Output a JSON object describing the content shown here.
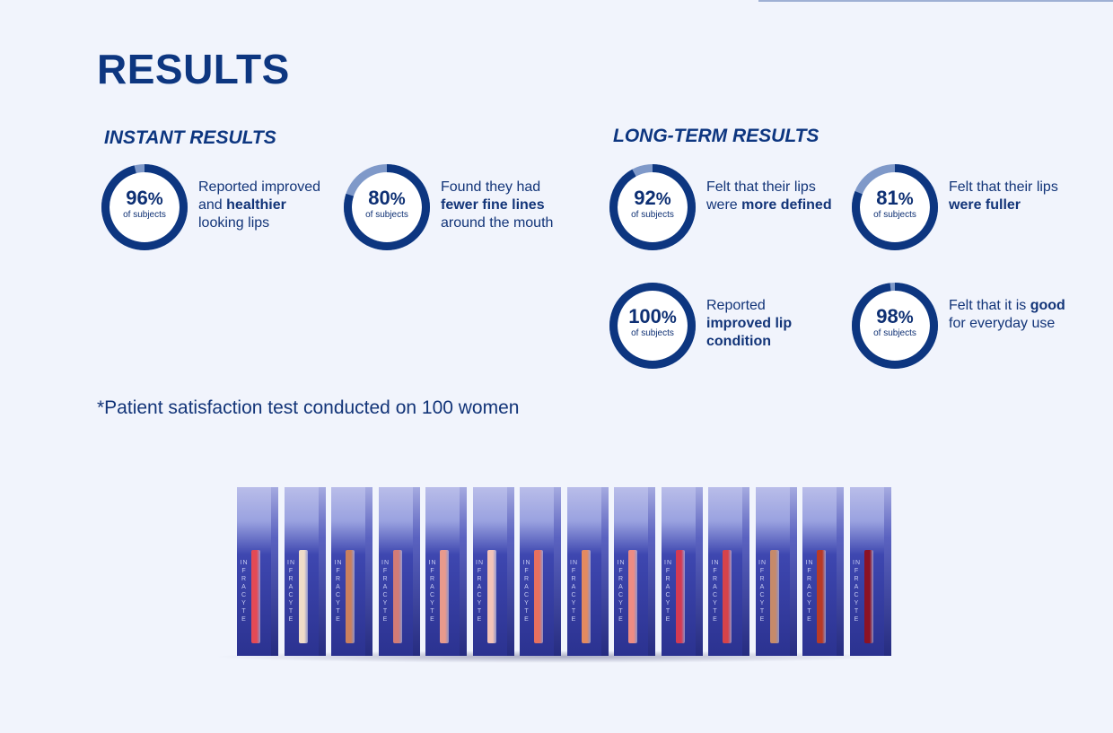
{
  "title": "RESULTS",
  "instant": {
    "heading": "INSTANT RESULTS",
    "stats": [
      {
        "value": 96,
        "number": "96",
        "unit": "%",
        "sub": "of subjects",
        "desc": [
          {
            "t": "Reported improved"
          },
          {
            "t": "and "
          },
          {
            "t": "healthier",
            "b": true
          },
          {
            "t": "looking lips"
          }
        ]
      },
      {
        "value": 80,
        "number": "80",
        "unit": "%",
        "sub": "of subjects",
        "desc": [
          {
            "t": "Found they had"
          },
          {
            "t": "fewer fine lines",
            "b": true
          },
          {
            "t": "around the mouth"
          }
        ]
      }
    ]
  },
  "longterm": {
    "heading": "LONG-TERM RESULTS",
    "stats": [
      {
        "value": 92,
        "number": "92",
        "unit": "%",
        "sub": "of subjects",
        "desc": [
          {
            "t": "Felt that their lips"
          },
          {
            "t": "were "
          },
          {
            "t": "more defined",
            "b": true
          }
        ]
      },
      {
        "value": 81,
        "number": "81",
        "unit": "%",
        "sub": "of subjects",
        "desc": [
          {
            "t": "Felt that their lips"
          },
          {
            "t": "were fuller",
            "b": true
          }
        ]
      },
      {
        "value": 100,
        "number": "100",
        "unit": "%",
        "sub": "of subjects",
        "desc": [
          {
            "t": "Reported"
          },
          {
            "t": "improved lip",
            "b": true
          },
          {
            "t": "condition",
            "b": true
          }
        ]
      },
      {
        "value": 98,
        "number": "98",
        "unit": "%",
        "sub": "of subjects",
        "desc": [
          {
            "t": "Felt that it is "
          },
          {
            "t": "good",
            "b": true
          },
          {
            "t": "for everyday use"
          }
        ]
      }
    ]
  },
  "footnote": "*Patient satisfaction test conducted on 100 women",
  "products": {
    "brand": "INFRACYTE",
    "shades": [
      "#e44a55",
      "#efdcc8",
      "#c9805e",
      "#d27b76",
      "#e89a8c",
      "#f3c3b8",
      "#e8705e",
      "#e38a60",
      "#ee8c83",
      "#d43a52",
      "#d6434a",
      "#c68a6a",
      "#b83a26",
      "#8c1224"
    ]
  },
  "colors": {
    "ring": "#0d3680",
    "ring_track": "#7f99c9",
    "ring_bg": "#ffffff"
  }
}
